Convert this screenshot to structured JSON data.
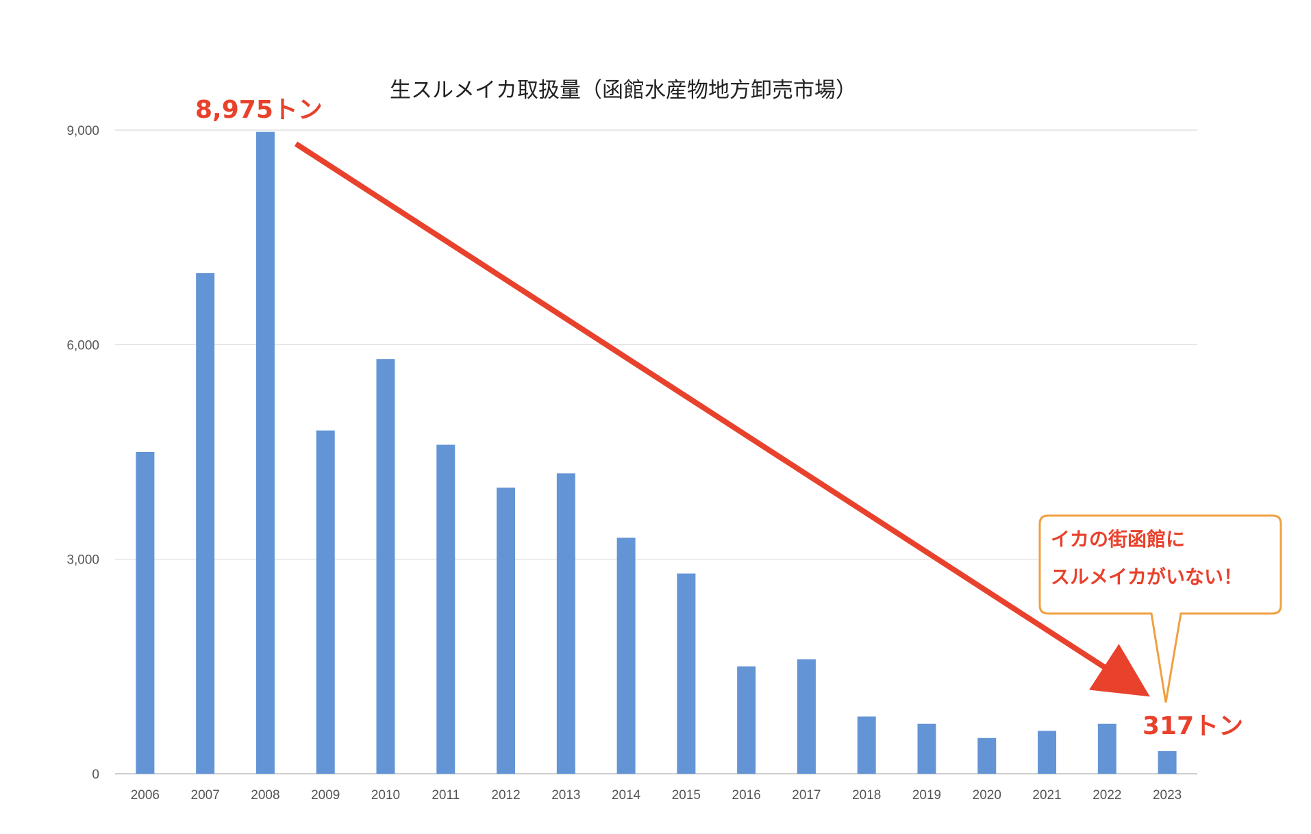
{
  "chart_data": {
    "type": "bar",
    "title": "生スルメイカ取扱量（函館水産物地方卸売市場）",
    "categories": [
      "2006",
      "2007",
      "2008",
      "2009",
      "2010",
      "2011",
      "2012",
      "2013",
      "2014",
      "2015",
      "2016",
      "2017",
      "2018",
      "2019",
      "2020",
      "2021",
      "2022",
      "2023"
    ],
    "values": [
      4500,
      7000,
      8975,
      4800,
      5800,
      4600,
      4000,
      4200,
      3300,
      2800,
      1500,
      1600,
      800,
      700,
      500,
      600,
      700,
      317
    ],
    "xlabel": "",
    "ylabel": "",
    "ylim": [
      0,
      9000
    ],
    "yticks": [
      0,
      3000,
      6000,
      9000
    ],
    "ytick_labels": [
      "0",
      "3,000",
      "6,000",
      "9,000"
    ],
    "grid": true,
    "bar_color": "#6395d6",
    "annotations": {
      "peak_label": "8,975トン",
      "last_label": "317トン",
      "callout_line1": "イカの街函館に",
      "callout_line2": "スルメイカがいない！"
    },
    "accent_color": "#e8412c",
    "callout_border_color": "#f0a040"
  }
}
